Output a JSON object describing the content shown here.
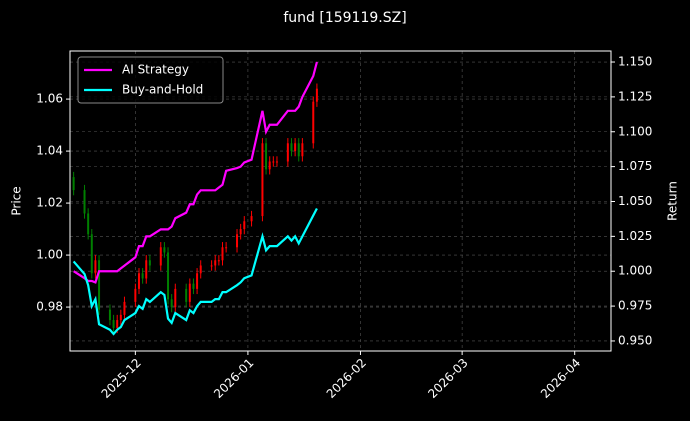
{
  "chart_data": {
    "type": "candlestick",
    "title": "fund [159119.SZ]",
    "ylabel": "Price",
    "y2label": "Return",
    "x": [
      -17,
      -14,
      -13,
      -12,
      -11,
      -10,
      -7,
      -6,
      -5,
      -4,
      -3,
      0,
      1,
      2,
      3,
      4,
      7,
      8,
      9,
      10,
      11,
      14,
      15,
      16,
      17,
      18,
      21,
      22,
      23,
      24,
      25,
      28,
      29,
      30,
      32,
      35,
      36,
      37,
      38,
      39,
      42,
      43,
      44,
      45,
      46,
      49,
      50
    ],
    "open": [
      1.03,
      1.025,
      1.016,
      1.008,
      0.993,
      0.998,
      0.979,
      0.975,
      0.972,
      0.975,
      0.977,
      0.982,
      0.987,
      0.993,
      0.991,
      0.998,
      0.996,
      1.003,
      1.001,
      0.983,
      0.98,
      0.987,
      0.982,
      0.989,
      0.987,
      0.993,
      0.996,
      0.996,
      0.998,
      0.998,
      1.003,
      1.003,
      1.008,
      1.01,
      1.013,
      1.015,
      1.043,
      1.033,
      1.036,
      1.036,
      1.036,
      1.043,
      1.04,
      1.043,
      1.038,
      1.043,
      1.059
    ],
    "high": [
      1.032,
      1.027,
      1.018,
      1.01,
      1.0,
      1.0,
      0.981,
      0.977,
      0.977,
      0.979,
      0.984,
      0.989,
      0.995,
      0.995,
      1.0,
      1.0,
      1.005,
      1.005,
      1.003,
      0.985,
      0.989,
      0.989,
      0.991,
      0.991,
      0.995,
      0.998,
      0.998,
      1.0,
      1.0,
      1.005,
      1.005,
      1.01,
      1.012,
      1.015,
      1.017,
      1.045,
      1.045,
      1.038,
      1.038,
      1.038,
      1.045,
      1.045,
      1.045,
      1.045,
      1.045,
      1.061,
      1.066
    ],
    "low": [
      1.023,
      1.014,
      1.006,
      0.991,
      0.991,
      0.977,
      0.973,
      0.97,
      0.97,
      0.973,
      0.975,
      0.98,
      0.985,
      0.989,
      0.989,
      0.994,
      0.994,
      0.999,
      0.981,
      0.978,
      0.978,
      0.98,
      0.98,
      0.985,
      0.985,
      0.991,
      0.994,
      0.994,
      0.996,
      0.996,
      1.001,
      1.001,
      1.006,
      1.008,
      1.011,
      1.013,
      1.031,
      1.031,
      1.034,
      1.034,
      1.034,
      1.038,
      1.038,
      1.036,
      1.036,
      1.041,
      1.057
    ],
    "close": [
      1.025,
      1.016,
      1.008,
      0.993,
      0.998,
      0.979,
      0.975,
      0.972,
      0.975,
      0.977,
      0.982,
      0.987,
      0.993,
      0.991,
      0.998,
      0.996,
      1.003,
      1.001,
      0.983,
      0.98,
      0.987,
      0.982,
      0.989,
      0.987,
      0.993,
      0.996,
      0.996,
      0.998,
      0.998,
      1.003,
      1.003,
      1.008,
      1.01,
      1.013,
      1.015,
      1.043,
      1.033,
      1.036,
      1.036,
      1.036,
      1.043,
      1.04,
      1.043,
      1.038,
      1.043,
      1.059,
      1.064
    ],
    "up_color": "#ff0000",
    "down_color": "#008000",
    "series": [
      {
        "name": "AI Strategy",
        "color": "#ff00ff",
        "axis": "y2",
        "values": [
          1.0,
          0.995,
          0.993,
          0.993,
          0.992,
          1.0,
          1.0,
          1.0,
          1.0,
          1.002,
          1.004,
          1.01,
          1.018,
          1.018,
          1.025,
          1.025,
          1.03,
          1.03,
          1.03,
          1.032,
          1.038,
          1.042,
          1.048,
          1.048,
          1.055,
          1.058,
          1.058,
          1.058,
          1.06,
          1.062,
          1.072,
          1.074,
          1.075,
          1.078,
          1.08,
          1.115,
          1.1,
          1.105,
          1.105,
          1.105,
          1.115,
          1.115,
          1.115,
          1.118,
          1.125,
          1.14,
          1.15
        ]
      },
      {
        "name": "Buy-and-Hold",
        "color": "#00ffff",
        "axis": "y2",
        "values": [
          1.007,
          0.998,
          0.99,
          0.975,
          0.98,
          0.962,
          0.958,
          0.955,
          0.958,
          0.96,
          0.965,
          0.97,
          0.975,
          0.973,
          0.98,
          0.978,
          0.985,
          0.983,
          0.966,
          0.963,
          0.97,
          0.965,
          0.972,
          0.97,
          0.975,
          0.978,
          0.978,
          0.98,
          0.98,
          0.985,
          0.985,
          0.99,
          0.992,
          0.995,
          0.997,
          1.025,
          1.015,
          1.018,
          1.018,
          1.018,
          1.025,
          1.022,
          1.025,
          1.02,
          1.025,
          1.04,
          1.045
        ]
      }
    ],
    "xlim": [
      -18,
      131
    ],
    "xticks": [
      {
        "value": 0,
        "label": "2025-12"
      },
      {
        "value": 31,
        "label": "2026-01"
      },
      {
        "value": 62,
        "label": "2026-02"
      },
      {
        "value": 90,
        "label": "2026-03"
      },
      {
        "value": 121,
        "label": "2026-04"
      }
    ],
    "ylim": [
      0.9631,
      1.0785
    ],
    "yticks": [
      0.98,
      {
        "value": 1.0,
        "label": "1.00"
      },
      1.02,
      1.04,
      1.06
    ],
    "y2lim": [
      0.9428,
      1.1579
    ],
    "y2ticks": [
      {
        "value": 0.95,
        "label": "0.950"
      },
      0.975,
      {
        "value": 1.0,
        "label": "1.000"
      },
      1.025,
      {
        "value": 1.05,
        "label": "1.050"
      },
      1.075,
      {
        "value": 1.1,
        "label": "1.100"
      },
      1.125,
      {
        "value": 1.15,
        "label": "1.150"
      }
    ],
    "grid": true,
    "legend": "upper left"
  }
}
